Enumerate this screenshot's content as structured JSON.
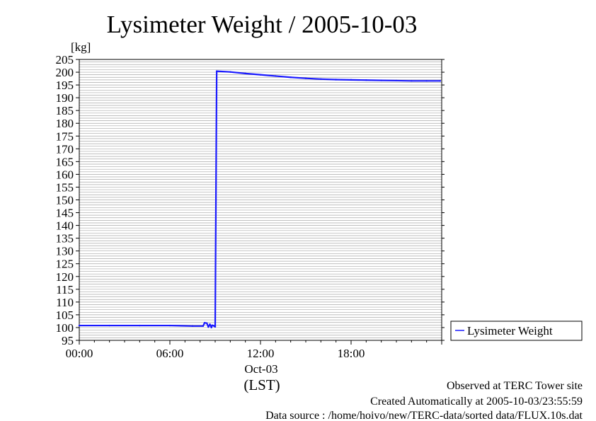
{
  "chart_data": {
    "type": "line",
    "title": "Lysimeter Weight / 2005-10-03",
    "ylabel": "[kg]",
    "ylim": [
      95,
      205
    ],
    "yticks": [
      95,
      100,
      105,
      110,
      115,
      120,
      125,
      130,
      135,
      140,
      145,
      150,
      155,
      160,
      165,
      170,
      175,
      180,
      185,
      190,
      195,
      200,
      205
    ],
    "xlim_hours": [
      0,
      24
    ],
    "xticks": [
      {
        "hour": 0,
        "label": "00:00"
      },
      {
        "hour": 6,
        "label": "06:00"
      },
      {
        "hour": 12,
        "label": "12:00"
      },
      {
        "hour": 18,
        "label": "18:00"
      }
    ],
    "date_label": "Oct-03",
    "tz_label": "(LST)",
    "grid": true,
    "legend_position": "right",
    "series": [
      {
        "name": "Lysimeter Weight",
        "color": "#1a1aff",
        "x_hours": [
          0,
          2,
          4,
          6,
          7.5,
          8.2,
          8.3,
          8.45,
          8.55,
          8.65,
          8.75,
          8.8,
          8.9,
          9.0,
          9.05,
          9.1,
          10,
          11,
          12,
          13,
          14,
          15,
          16,
          17,
          18,
          19,
          20,
          21,
          22,
          23,
          23.9
        ],
        "values": [
          100.8,
          100.8,
          100.8,
          100.8,
          100.6,
          100.6,
          101.9,
          101.7,
          100.2,
          101.3,
          100.0,
          100.9,
          100.7,
          100.3,
          150.0,
          200.4,
          200.1,
          199.5,
          199.0,
          198.5,
          198.0,
          197.6,
          197.3,
          197.1,
          197.0,
          196.9,
          196.8,
          196.7,
          196.6,
          196.6,
          196.6
        ]
      }
    ]
  },
  "footer": {
    "observed": "Observed at TERC Tower site",
    "created": "Created Automatically at 2005-10-03/23:55:59",
    "source": "Data source : /home/hoivo/new/TERC-data/sorted data/FLUX.10s.dat"
  }
}
